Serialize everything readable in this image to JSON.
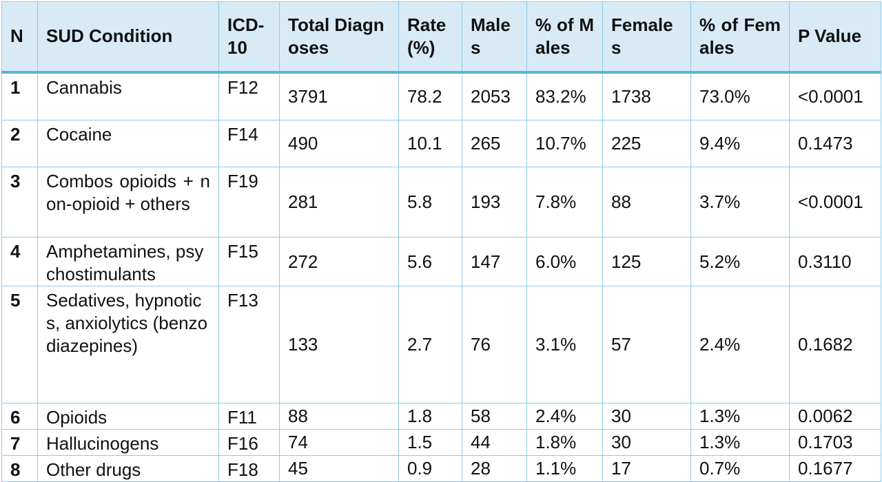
{
  "headers": {
    "n": "N",
    "condition": "SUD Condition",
    "icd": "ICD-10",
    "total": "Total Diagnoses",
    "rate": "Rate (%)",
    "male": "Males",
    "pct_male": "% of Males",
    "female": "Females",
    "pct_female": "% of Females",
    "p": "P Value"
  },
  "rows": [
    {
      "n": "1",
      "condition": "Cannabis",
      "icd": "F12",
      "total": "3791",
      "rate": "78.2",
      "male": "2053",
      "pct_male": "83.2%",
      "female": "1738",
      "pct_female": "73.0%",
      "p": "<0.0001"
    },
    {
      "n": "2",
      "condition": "Cocaine",
      "icd": "F14",
      "total": "490",
      "rate": "10.1",
      "male": "265",
      "pct_male": "10.7%",
      "female": "225",
      "pct_female": "9.4%",
      "p": "0.1473"
    },
    {
      "n": "3",
      "condition": "Combos opioids + non-opioid + others",
      "icd": "F19",
      "total": "281",
      "rate": "5.8",
      "male": "193",
      "pct_male": "7.8%",
      "female": "88",
      "pct_female": "3.7%",
      "p": "<0.0001"
    },
    {
      "n": "4",
      "condition": "Amphetamines, psychostimulants",
      "icd": "F15",
      "total": "272",
      "rate": "5.6",
      "male": "147",
      "pct_male": "6.0%",
      "female": "125",
      "pct_female": "5.2%",
      "p": "0.3110"
    },
    {
      "n": "5",
      "condition": "Sedatives, hypnotics, anxiolytics (benzodiazepines)",
      "icd": "F13",
      "total": "133",
      "rate": "2.7",
      "male": "76",
      "pct_male": "3.1%",
      "female": "57",
      "pct_female": "2.4%",
      "p": "0.1682"
    },
    {
      "n": "6",
      "condition": "Opioids",
      "icd": "F11",
      "total": "88",
      "rate": "1.8",
      "male": "58",
      "pct_male": "2.4%",
      "female": "30",
      "pct_female": "1.3%",
      "p": "0.0062"
    },
    {
      "n": "7",
      "condition": "Hallucinogens",
      "icd": "F16",
      "total": "74",
      "rate": "1.5",
      "male": "44",
      "pct_male": "1.8%",
      "female": "30",
      "pct_female": "1.3%",
      "p": "0.1703"
    },
    {
      "n": "8",
      "condition": "Other drugs",
      "icd": "F18",
      "total": "45",
      "rate": "0.9",
      "male": "28",
      "pct_male": "1.1%",
      "female": "17",
      "pct_female": "0.7%",
      "p": "0.1677"
    }
  ]
}
